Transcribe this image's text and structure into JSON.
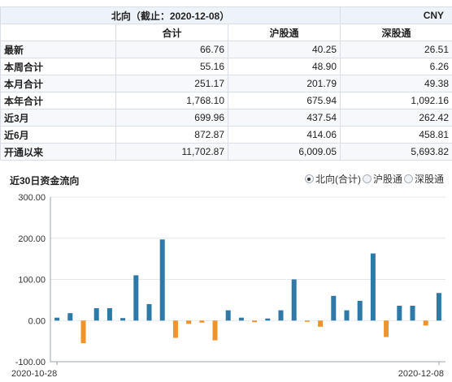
{
  "table": {
    "title": "北向（截止：2020-12-08）",
    "currency": "CNY",
    "columns": [
      "合计",
      "沪股通",
      "深股通"
    ],
    "rows": [
      {
        "label": "最新",
        "values": [
          "66.76",
          "40.25",
          "26.51"
        ]
      },
      {
        "label": "本周合计",
        "values": [
          "55.16",
          "48.90",
          "6.26"
        ]
      },
      {
        "label": "本月合计",
        "values": [
          "251.17",
          "201.79",
          "49.38"
        ]
      },
      {
        "label": "本年合计",
        "values": [
          "1,768.10",
          "675.94",
          "1,092.16"
        ]
      },
      {
        "label": "近3月",
        "values": [
          "699.96",
          "437.54",
          "262.42"
        ]
      },
      {
        "label": "近6月",
        "values": [
          "872.87",
          "414.06",
          "458.81"
        ]
      },
      {
        "label": "开通以来",
        "values": [
          "11,702.87",
          "6,009.05",
          "5,693.82"
        ]
      }
    ]
  },
  "chart_section": {
    "title": "近30日资金流向",
    "options": [
      {
        "label": "北向(合计)",
        "checked": true
      },
      {
        "label": "沪股通",
        "checked": false
      },
      {
        "label": "深股通",
        "checked": false
      }
    ]
  },
  "colors": {
    "positive": "#2f79a6",
    "negative": "#f0932b",
    "grid": "#e3e7ee",
    "axis": "#9aa4b2"
  },
  "chart_data": {
    "type": "bar",
    "ylim": [
      -100,
      300
    ],
    "yticks": [
      "300.00",
      "200.00",
      "100.00",
      "0.00",
      "-100.00"
    ],
    "ytick_values": [
      300,
      200,
      100,
      0,
      -100
    ],
    "x_tick_labels": [
      "2020-10-28",
      "2020-12-08"
    ],
    "values": [
      7,
      18,
      -55,
      30,
      30,
      6,
      110,
      40,
      197,
      -42,
      -8,
      -5,
      -48,
      25,
      7,
      -4,
      5,
      25,
      100,
      -3,
      -15,
      60,
      25,
      48,
      163,
      -40,
      36,
      36,
      -12,
      67
    ]
  }
}
